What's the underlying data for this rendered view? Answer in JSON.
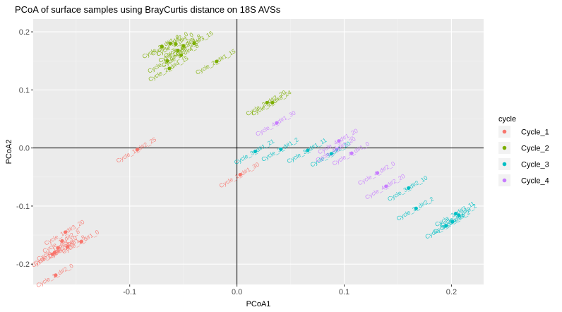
{
  "chart_data": {
    "type": "scatter",
    "title": "PCoA of surface samples using BrayCurtis distance on 18S AVSs",
    "xlabel": "PCoA1",
    "ylabel": "PCoA2",
    "xlim": [
      -0.19,
      0.23
    ],
    "ylim": [
      -0.235,
      0.222
    ],
    "xticks": [
      -0.1,
      0.0,
      0.1,
      0.2
    ],
    "xtick_labels": [
      "-0.1",
      "0.0",
      "0.1",
      "0.2"
    ],
    "yticks": [
      -0.2,
      -0.1,
      0.0,
      0.1,
      0.2
    ],
    "ytick_labels": [
      "-0.2",
      "-0.1",
      "0.0",
      "0.1",
      "0.2"
    ],
    "reference_lines": {
      "x": 0,
      "y": 0
    },
    "grid": true,
    "legend": {
      "title": "cycle",
      "position": "right",
      "entries": [
        "Cycle_1",
        "Cycle_2",
        "Cycle_3",
        "Cycle_4"
      ]
    },
    "series": [
      {
        "name": "Cycle_1",
        "color": "#F8766D",
        "points": [
          {
            "x": -0.093,
            "y": -0.003,
            "label": "Cycle_1_d#2_25"
          },
          {
            "x": 0.003,
            "y": -0.046,
            "label": "Cycle_1_d#1_30"
          },
          {
            "x": -0.16,
            "y": -0.145,
            "label": "Cycle_1_d#3_20"
          },
          {
            "x": -0.163,
            "y": -0.16,
            "label": "Cycle_1_d#2_8"
          },
          {
            "x": -0.158,
            "y": -0.17,
            "label": "Cycle_1_d#1_8"
          },
          {
            "x": -0.145,
            "y": -0.161,
            "label": "Cycle_1_d#1_0"
          },
          {
            "x": -0.167,
            "y": -0.172,
            "label": "Cycle_1_d#3_10"
          },
          {
            "x": -0.17,
            "y": -0.18,
            "label": "Cycle_1_d#2_10"
          },
          {
            "x": -0.172,
            "y": -0.183,
            "label": "Cycle_1_d#1_20"
          },
          {
            "x": -0.169,
            "y": -0.219,
            "label": "Cycle_1_d#2_0"
          }
        ]
      },
      {
        "name": "Cycle_2",
        "color": "#7CAE00",
        "points": [
          {
            "x": -0.062,
            "y": 0.18,
            "label": "Cycle_2_d#2_0"
          },
          {
            "x": -0.057,
            "y": 0.179,
            "label": "Cycle_2_d#1_0"
          },
          {
            "x": -0.07,
            "y": 0.175,
            "label": "Cycle_2_d#1_8"
          },
          {
            "x": -0.05,
            "y": 0.176,
            "label": "Cycle_2_d#3_8"
          },
          {
            "x": -0.04,
            "y": 0.18,
            "label": "Cycle_2_d#3_15"
          },
          {
            "x": -0.055,
            "y": 0.168,
            "label": "Cycle_2_d#2_8"
          },
          {
            "x": -0.052,
            "y": 0.16,
            "label": "Cycle_2_d#4_8"
          },
          {
            "x": -0.065,
            "y": 0.15,
            "label": "Cycle_2_d#4_0"
          },
          {
            "x": -0.063,
            "y": 0.137,
            "label": "Cycle_2_d#4_15"
          },
          {
            "x": -0.019,
            "y": 0.149,
            "label": "Cycle_2_d#1_15"
          },
          {
            "x": 0.028,
            "y": 0.078,
            "label": "Cycle_2_d#2_20"
          },
          {
            "x": 0.033,
            "y": 0.078,
            "label": "Cycle_2_d#3_24"
          }
        ]
      },
      {
        "name": "Cycle_3",
        "color": "#00BFC4",
        "points": [
          {
            "x": 0.017,
            "y": -0.006,
            "label": "Cycle_3_d#1_21"
          },
          {
            "x": 0.041,
            "y": -0.002,
            "label": "Cycle_3_d#1_2"
          },
          {
            "x": 0.066,
            "y": -0.004,
            "label": "Cycle_3_d#1_11"
          },
          {
            "x": 0.088,
            "y": -0.01,
            "label": "Cycle_3_d#2_20"
          },
          {
            "x": 0.16,
            "y": -0.069,
            "label": "Cycle_3_d#2_10"
          },
          {
            "x": 0.167,
            "y": -0.104,
            "label": "Cycle_3_d#2_2"
          },
          {
            "x": 0.204,
            "y": -0.113,
            "label": "Cycle_3_d#3_11"
          },
          {
            "x": 0.207,
            "y": -0.116,
            "label": "Cycle_3_d#3_2"
          },
          {
            "x": 0.201,
            "y": -0.127,
            "label": "Cycle_3_d#4_2"
          },
          {
            "x": 0.195,
            "y": -0.134,
            "label": "Cycle_3_d#4_20"
          }
        ]
      },
      {
        "name": "Cycle_4",
        "color": "#C77CFF",
        "points": [
          {
            "x": 0.037,
            "y": 0.043,
            "label": "Cycle_4_d#1_30"
          },
          {
            "x": 0.095,
            "y": 0.012,
            "label": "Cycle_4_d#1_20"
          },
          {
            "x": 0.107,
            "y": -0.009,
            "label": "Cycle_4_d#1_0"
          },
          {
            "x": 0.093,
            "y": -0.002,
            "label": "Cycle_4_d#2_20"
          },
          {
            "x": 0.131,
            "y": -0.043,
            "label": "Cycle_4_d#2_0"
          },
          {
            "x": 0.139,
            "y": -0.066,
            "label": "Cycle_4_d#2_20"
          }
        ]
      }
    ]
  }
}
